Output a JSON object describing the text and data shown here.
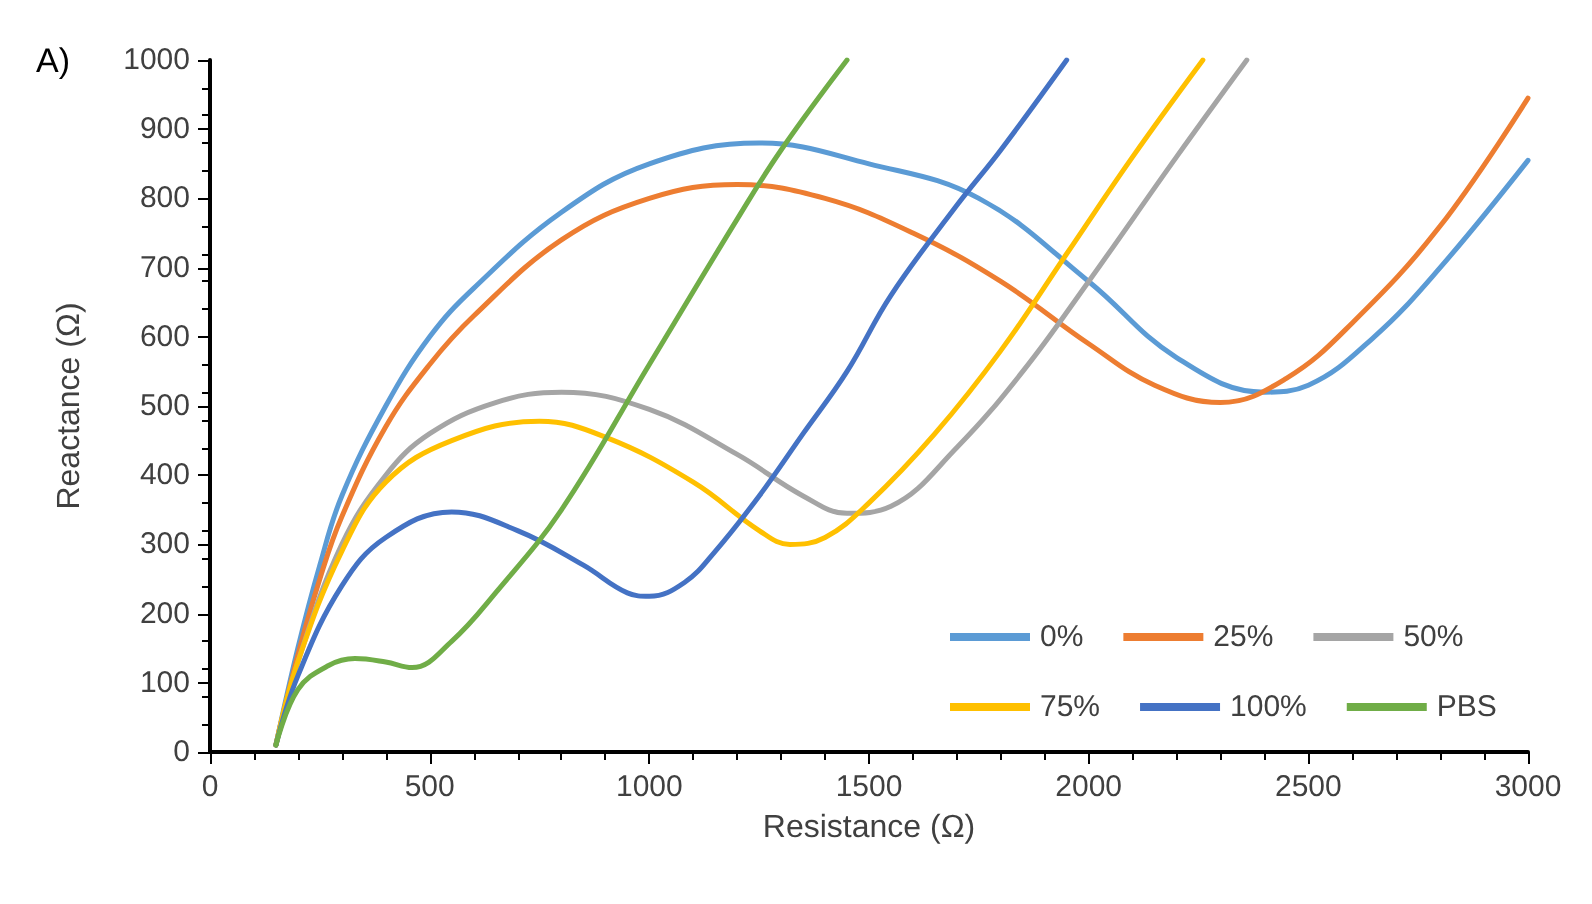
{
  "chart_data": {
    "type": "line",
    "xlabel": "Resistance (Ω)",
    "ylabel": "Reactance (Ω)",
    "annotations": [
      "A)"
    ],
    "xlim": [
      0,
      3000
    ],
    "ylim": [
      0,
      1000
    ],
    "xticks": [
      0,
      500,
      1000,
      1500,
      2000,
      2500,
      3000
    ],
    "yticks": [
      0,
      100,
      200,
      300,
      400,
      500,
      600,
      700,
      800,
      900,
      1000
    ],
    "grid": false,
    "legend": "bottom right",
    "marker": "none",
    "line_style": "solid",
    "series": [
      {
        "name": "0%",
        "color": "#5b9bd5",
        "x": [
          150,
          200,
          250,
          300,
          400,
          500,
          600,
          800,
          1000,
          1250,
          1500,
          1750,
          2000,
          2200,
          2400,
          2500,
          2650,
          2800,
          3000
        ],
        "values": [
          10,
          150,
          270,
          370,
          500,
          600,
          670,
          780,
          850,
          880,
          850,
          800,
          680,
          570,
          520,
          530,
          600,
          700,
          855
        ]
      },
      {
        "name": "25%",
        "color": "#ed7d31",
        "x": [
          150,
          200,
          250,
          300,
          400,
          500,
          600,
          800,
          1000,
          1200,
          1400,
          1600,
          1800,
          2000,
          2150,
          2300,
          2450,
          2600,
          2800,
          3000
        ],
        "values": [
          10,
          140,
          250,
          340,
          470,
          560,
          630,
          740,
          800,
          820,
          800,
          750,
          680,
          590,
          530,
          505,
          540,
          620,
          760,
          945
        ]
      },
      {
        "name": "50%",
        "color": "#a5a5a5",
        "x": [
          150,
          200,
          300,
          400,
          500,
          650,
          800,
          1000,
          1200,
          1350,
          1450,
          1550,
          1700,
          1850,
          2000,
          2200,
          2360
        ],
        "values": [
          10,
          130,
          300,
          400,
          460,
          505,
          520,
          495,
          430,
          370,
          345,
          355,
          440,
          550,
          680,
          860,
          1000
        ]
      },
      {
        "name": "75%",
        "color": "#ffc000",
        "x": [
          150,
          200,
          300,
          400,
          550,
          750,
          900,
          1100,
          1250,
          1320,
          1400,
          1500,
          1650,
          1800,
          1950,
          2100,
          2260
        ],
        "values": [
          10,
          130,
          290,
          390,
          450,
          478,
          455,
          390,
          320,
          300,
          310,
          360,
          460,
          580,
          720,
          860,
          1000
        ]
      },
      {
        "name": "100%",
        "color": "#4472c4",
        "x": [
          150,
          200,
          300,
          400,
          550,
          700,
          850,
          950,
          1000,
          1080,
          1150,
          1250,
          1350,
          1450,
          1550,
          1700,
          1800,
          1950
        ],
        "values": [
          10,
          110,
          240,
          310,
          347,
          320,
          270,
          230,
          225,
          245,
          290,
          370,
          460,
          550,
          660,
          790,
          870,
          1000
        ]
      },
      {
        "name": "PBS",
        "color": "#70ad47",
        "x": [
          150,
          200,
          270,
          330,
          400,
          460,
          550,
          650,
          800,
          1000,
          1200,
          1300,
          1450
        ],
        "values": [
          10,
          90,
          125,
          135,
          130,
          122,
          160,
          230,
          350,
          560,
          770,
          870,
          1000
        ]
      }
    ]
  }
}
